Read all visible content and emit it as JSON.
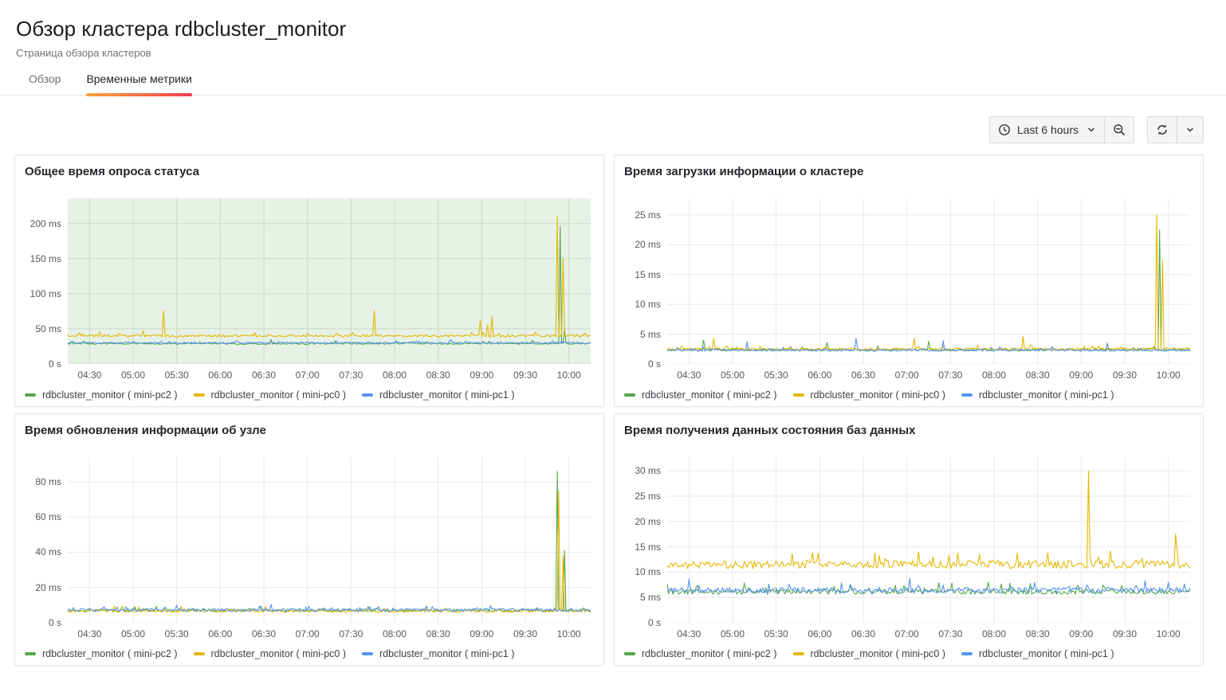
{
  "header": {
    "title": "Обзор кластера rdbcluster_monitor",
    "subtitle": "Страница обзора кластеров"
  },
  "tabs": [
    {
      "label": "Обзор",
      "active": false
    },
    {
      "label": "Временные метрики",
      "active": true
    }
  ],
  "toolbar": {
    "time_range": "Last 6 hours",
    "icons": [
      "clock-icon",
      "chevron-down-icon",
      "zoom-out-icon",
      "refresh-icon",
      "chevron-down-icon"
    ]
  },
  "colors": {
    "series_green": "#56a64b",
    "series_yellow": "#e6b600",
    "series_blue": "#5794f2",
    "tab_gradient_start": "#f7a33b",
    "tab_gradient_end": "#ed3e4f"
  },
  "chart_data": [
    {
      "type": "line",
      "title": "Общее время опроса статуса",
      "ylim": [
        0,
        236
      ],
      "x_domain": {
        "start": "04:15",
        "end": "10:15",
        "minutes": 360
      },
      "x_ticks": [
        {
          "minute": 15,
          "label": "04:30"
        },
        {
          "minute": 45,
          "label": "05:00"
        },
        {
          "minute": 75,
          "label": "05:30"
        },
        {
          "minute": 105,
          "label": "06:00"
        },
        {
          "minute": 135,
          "label": "06:30"
        },
        {
          "minute": 165,
          "label": "07:00"
        },
        {
          "minute": 195,
          "label": "07:30"
        },
        {
          "minute": 225,
          "label": "08:00"
        },
        {
          "minute": 255,
          "label": "08:30"
        },
        {
          "minute": 285,
          "label": "09:00"
        },
        {
          "minute": 315,
          "label": "09:30"
        },
        {
          "minute": 345,
          "label": "10:00"
        }
      ],
      "y_ticks": [
        {
          "value": 0,
          "label": "0 s"
        },
        {
          "value": 50,
          "label": "50 ms"
        },
        {
          "value": 100,
          "label": "100 ms"
        },
        {
          "value": 150,
          "label": "150 ms"
        },
        {
          "value": 200,
          "label": "200 ms"
        }
      ],
      "region_fill": "rgba(86,166,75,0.14)",
      "grid_color": "#ccd8c8",
      "legend_position": "bottom",
      "series": [
        {
          "name": "rdbcluster_monitor ( mini-pc2 )",
          "color": "#56a64b",
          "baseline": 29,
          "noise": 1.2,
          "spikes": [
            [
              140,
              35
            ],
            [
              339,
              196
            ],
            [
              342,
              50
            ]
          ]
        },
        {
          "name": "rdbcluster_monitor ( mini-pc0 )",
          "color": "#e6b600",
          "baseline": 40,
          "noise": 1.7,
          "spikes": [
            [
              66,
              76
            ],
            [
              211,
              76
            ],
            [
              284,
              62
            ],
            [
              289,
              55
            ],
            [
              292,
              68
            ],
            [
              337,
              210
            ],
            [
              341,
              150
            ]
          ]
        },
        {
          "name": "rdbcluster_monitor ( mini-pc1 )",
          "color": "#5794f2",
          "baseline": 30,
          "noise": 1.2,
          "spikes": []
        }
      ]
    },
    {
      "type": "line",
      "title": "Время загрузки информации о кластере",
      "ylim": [
        0,
        27.8
      ],
      "x_domain": {
        "start": "04:15",
        "end": "10:15",
        "minutes": 360
      },
      "x_ticks": [
        {
          "minute": 15,
          "label": "04:30"
        },
        {
          "minute": 45,
          "label": "05:00"
        },
        {
          "minute": 75,
          "label": "05:30"
        },
        {
          "minute": 105,
          "label": "06:00"
        },
        {
          "minute": 135,
          "label": "06:30"
        },
        {
          "minute": 165,
          "label": "07:00"
        },
        {
          "minute": 195,
          "label": "07:30"
        },
        {
          "minute": 225,
          "label": "08:00"
        },
        {
          "minute": 255,
          "label": "08:30"
        },
        {
          "minute": 285,
          "label": "09:00"
        },
        {
          "minute": 315,
          "label": "09:30"
        },
        {
          "minute": 345,
          "label": "10:00"
        }
      ],
      "y_ticks": [
        {
          "value": 0,
          "label": "0 s"
        },
        {
          "value": 5,
          "label": "5 ms"
        },
        {
          "value": 10,
          "label": "10 ms"
        },
        {
          "value": 15,
          "label": "15 ms"
        },
        {
          "value": 20,
          "label": "20 ms"
        },
        {
          "value": 25,
          "label": "25 ms"
        }
      ],
      "region_fill": null,
      "grid_color": "#e7e8ea",
      "legend_position": "bottom",
      "series": [
        {
          "name": "rdbcluster_monitor ( mini-pc2 )",
          "color": "#56a64b",
          "baseline": 2.35,
          "noise": 0.18,
          "spikes": [
            [
              25,
              4.0
            ],
            [
              110,
              3.6
            ],
            [
              180,
              3.8
            ],
            [
              339,
              22.5
            ]
          ]
        },
        {
          "name": "rdbcluster_monitor ( mini-pc0 )",
          "color": "#e6b600",
          "baseline": 2.5,
          "noise": 0.2,
          "spikes": [
            [
              32,
              4.3
            ],
            [
              170,
              4.2
            ],
            [
              245,
              4.6
            ],
            [
              337,
              25
            ],
            [
              341,
              17.3
            ]
          ]
        },
        {
          "name": "rdbcluster_monitor ( mini-pc1 )",
          "color": "#5794f2",
          "baseline": 2.3,
          "noise": 0.18,
          "spikes": [
            [
              55,
              3.7
            ],
            [
              130,
              4.3
            ],
            [
              190,
              3.9
            ],
            [
              303,
              3.5
            ]
          ]
        }
      ]
    },
    {
      "type": "line",
      "title": "Время обновления информации об узле",
      "ylim": [
        0,
        94
      ],
      "x_domain": {
        "start": "04:15",
        "end": "10:15",
        "minutes": 360
      },
      "x_ticks": [
        {
          "minute": 15,
          "label": "04:30"
        },
        {
          "minute": 45,
          "label": "05:00"
        },
        {
          "minute": 75,
          "label": "05:30"
        },
        {
          "minute": 105,
          "label": "06:00"
        },
        {
          "minute": 135,
          "label": "06:30"
        },
        {
          "minute": 165,
          "label": "07:00"
        },
        {
          "minute": 195,
          "label": "07:30"
        },
        {
          "minute": 225,
          "label": "08:00"
        },
        {
          "minute": 255,
          "label": "08:30"
        },
        {
          "minute": 285,
          "label": "09:00"
        },
        {
          "minute": 315,
          "label": "09:30"
        },
        {
          "minute": 345,
          "label": "10:00"
        }
      ],
      "y_ticks": [
        {
          "value": 0,
          "label": "0 s"
        },
        {
          "value": 20,
          "label": "20 ms"
        },
        {
          "value": 40,
          "label": "40 ms"
        },
        {
          "value": 60,
          "label": "60 ms"
        },
        {
          "value": 80,
          "label": "80 ms"
        }
      ],
      "region_fill": null,
      "grid_color": "#e7e8ea",
      "legend_position": "bottom",
      "series": [
        {
          "name": "rdbcluster_monitor ( mini-pc2 )",
          "color": "#56a64b",
          "baseline": 7.0,
          "noise": 0.8,
          "spikes": [
            [
              337,
              86
            ],
            [
              342,
              41
            ]
          ]
        },
        {
          "name": "rdbcluster_monitor ( mini-pc0 )",
          "color": "#e6b600",
          "baseline": 6.7,
          "noise": 0.8,
          "spikes": [
            [
              338,
              75
            ],
            [
              341,
              38
            ]
          ]
        },
        {
          "name": "rdbcluster_monitor ( mini-pc1 )",
          "color": "#5794f2",
          "baseline": 7.2,
          "noise": 0.9,
          "spikes": [
            [
              140,
              10.5
            ]
          ]
        }
      ]
    },
    {
      "type": "line",
      "title": "Время получения данных состояния баз данных",
      "ylim": [
        0,
        32.7
      ],
      "x_domain": {
        "start": "04:15",
        "end": "10:15",
        "minutes": 360
      },
      "x_ticks": [
        {
          "minute": 15,
          "label": "04:30"
        },
        {
          "minute": 45,
          "label": "05:00"
        },
        {
          "minute": 75,
          "label": "05:30"
        },
        {
          "minute": 105,
          "label": "06:00"
        },
        {
          "minute": 135,
          "label": "06:30"
        },
        {
          "minute": 165,
          "label": "07:00"
        },
        {
          "minute": 195,
          "label": "07:30"
        },
        {
          "minute": 225,
          "label": "08:00"
        },
        {
          "minute": 255,
          "label": "08:30"
        },
        {
          "minute": 285,
          "label": "09:00"
        },
        {
          "minute": 315,
          "label": "09:30"
        },
        {
          "minute": 345,
          "label": "10:00"
        }
      ],
      "y_ticks": [
        {
          "value": 0,
          "label": "0 s"
        },
        {
          "value": 5,
          "label": "5 ms"
        },
        {
          "value": 10,
          "label": "10 ms"
        },
        {
          "value": 15,
          "label": "15 ms"
        },
        {
          "value": 20,
          "label": "20 ms"
        },
        {
          "value": 25,
          "label": "25 ms"
        },
        {
          "value": 30,
          "label": "30 ms"
        }
      ],
      "region_fill": null,
      "grid_color": "#e7e8ea",
      "legend_position": "bottom",
      "series": [
        {
          "name": "rdbcluster_monitor ( mini-pc2 )",
          "color": "#56a64b",
          "baseline": 6.1,
          "noise": 0.5,
          "spikes": [
            [
              250,
              7.8
            ]
          ]
        },
        {
          "name": "rdbcluster_monitor ( mini-pc0 )",
          "color": "#e6b600",
          "baseline": 11.5,
          "noise": 0.8,
          "spikes": [
            [
              100,
              13.8
            ],
            [
              215,
              13.5
            ],
            [
              290,
              30
            ],
            [
              305,
              14.2
            ],
            [
              350,
              17.5
            ]
          ]
        },
        {
          "name": "rdbcluster_monitor ( mini-pc1 )",
          "color": "#5794f2",
          "baseline": 6.4,
          "noise": 0.6,
          "spikes": [
            [
              15,
              8.6
            ],
            [
              167,
              8.8
            ],
            [
              345,
              8.0
            ]
          ]
        }
      ]
    }
  ]
}
